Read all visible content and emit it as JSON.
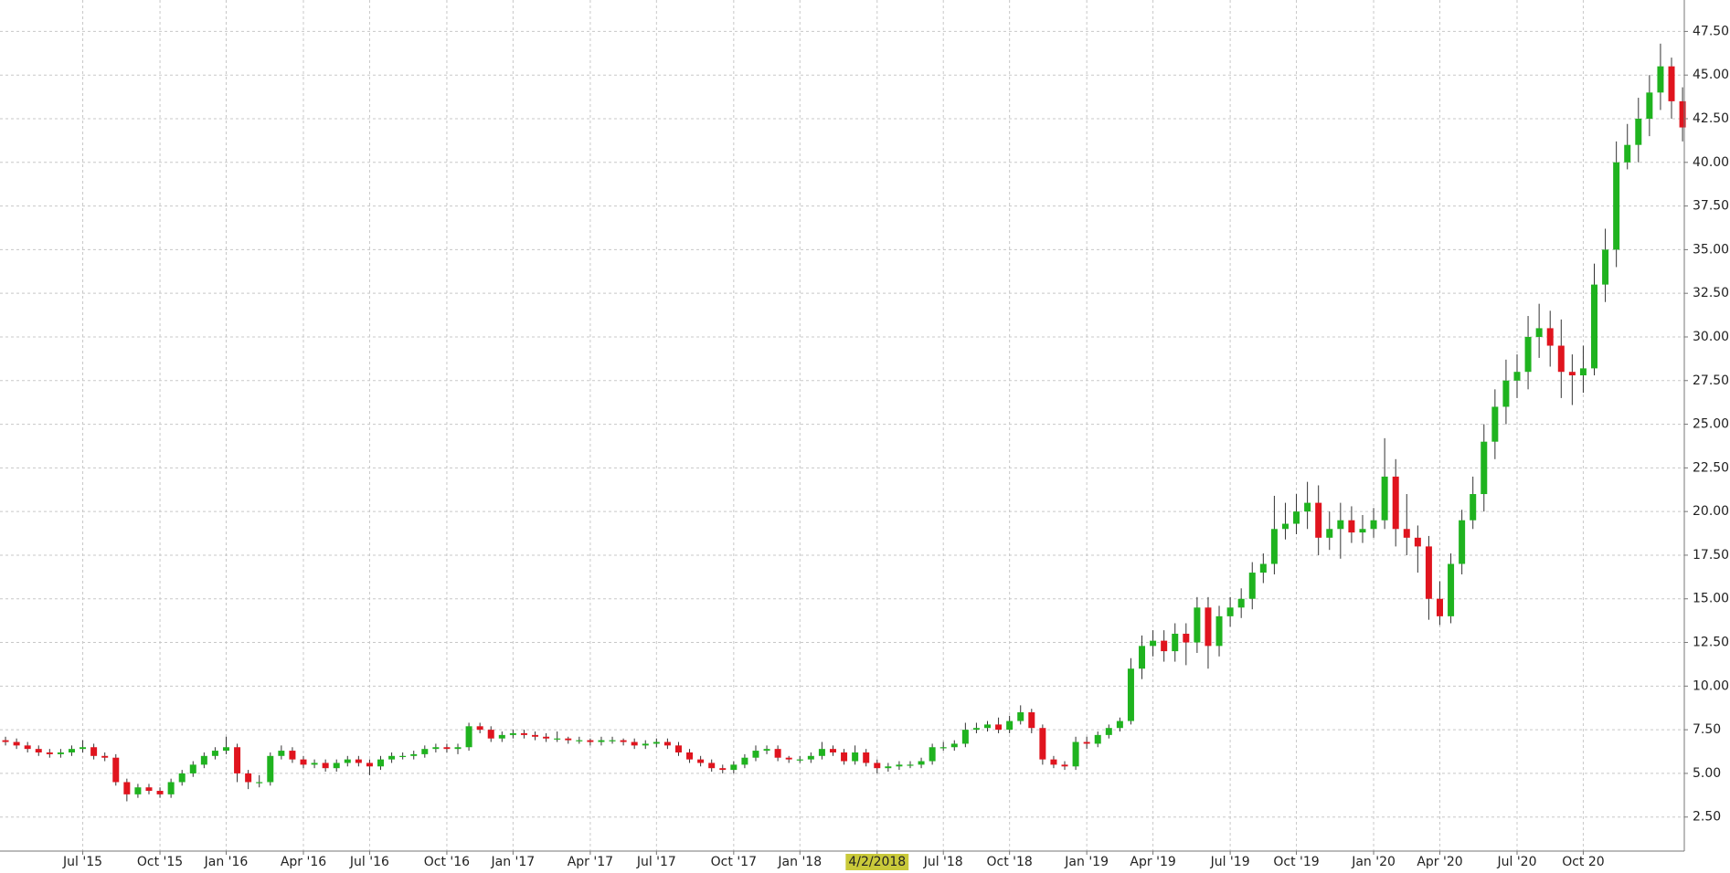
{
  "chart_data": {
    "type": "candlestick",
    "up_color": "#1fb31f",
    "down_color": "#e0141e",
    "highlight_color": "#c9c93a",
    "grid": true,
    "categories": [
      null,
      null,
      null,
      null,
      null,
      null,
      null,
      "Jul '15",
      null,
      null,
      null,
      null,
      null,
      null,
      "Oct '15",
      null,
      null,
      null,
      null,
      null,
      "Jan '16",
      null,
      null,
      null,
      null,
      null,
      null,
      "Apr '16",
      null,
      null,
      null,
      null,
      null,
      "Jul '16",
      null,
      null,
      null,
      null,
      null,
      null,
      "Oct '16",
      null,
      null,
      null,
      null,
      null,
      "Jan '17",
      null,
      null,
      null,
      null,
      null,
      null,
      "Apr '17",
      null,
      null,
      null,
      null,
      null,
      "Jul '17",
      null,
      null,
      null,
      null,
      null,
      null,
      "Oct '17",
      null,
      null,
      null,
      null,
      null,
      "Jan '18",
      null,
      null,
      null,
      null,
      null,
      null,
      "4/2/2018",
      null,
      null,
      null,
      null,
      null,
      "Jul '18",
      null,
      null,
      null,
      null,
      null,
      "Oct '18",
      null,
      null,
      null,
      null,
      null,
      null,
      "Jan '19",
      null,
      null,
      null,
      null,
      null,
      "Apr '19",
      null,
      null,
      null,
      null,
      null,
      null,
      "Jul '19",
      null,
      null,
      null,
      null,
      null,
      "Oct '19",
      null,
      null,
      null,
      null,
      null,
      null,
      "Jan '20",
      null,
      null,
      null,
      null,
      null,
      "Apr '20",
      null,
      null,
      null,
      null,
      null,
      null,
      "Jul '20",
      null,
      null,
      null,
      null,
      null,
      "Oct 20",
      null,
      null,
      null,
      null,
      null,
      null,
      null,
      null,
      null
    ],
    "open": [
      6.9,
      6.8,
      6.6,
      6.4,
      6.2,
      6.1,
      6.2,
      6.4,
      6.5,
      6.0,
      5.9,
      4.5,
      3.8,
      4.2,
      4.0,
      3.8,
      4.5,
      5.0,
      5.5,
      6.0,
      6.3,
      6.5,
      5.0,
      4.5,
      4.5,
      6.0,
      6.3,
      5.8,
      5.5,
      5.6,
      5.3,
      5.6,
      5.8,
      5.6,
      5.4,
      5.8,
      6.0,
      6.0,
      6.1,
      6.4,
      6.5,
      6.4,
      6.5,
      7.7,
      7.5,
      7.0,
      7.2,
      7.3,
      7.2,
      7.1,
      7.0,
      7.0,
      6.9,
      6.9,
      6.8,
      6.9,
      6.9,
      6.8,
      6.6,
      6.7,
      6.8,
      6.6,
      6.2,
      5.8,
      5.6,
      5.3,
      5.2,
      5.5,
      5.9,
      6.3,
      6.4,
      5.9,
      5.8,
      5.8,
      6.0,
      6.4,
      6.2,
      5.7,
      6.2,
      5.6,
      5.3,
      5.4,
      5.5,
      5.5,
      5.7,
      6.5,
      6.5,
      6.7,
      7.5,
      7.6,
      7.8,
      7.5,
      8.0,
      8.5,
      7.6,
      5.8,
      5.5,
      5.4,
      6.8,
      6.7,
      7.2,
      7.6,
      8.0,
      11.0,
      12.3,
      12.6,
      12.0,
      13.0,
      12.5,
      14.5,
      12.3,
      14.0,
      14.5,
      15.0,
      16.5,
      17.0,
      19.0,
      19.3,
      20.0,
      20.5,
      18.5,
      19.0,
      19.5,
      18.8,
      19.0,
      19.5,
      22.0,
      19.0,
      18.5,
      18.0,
      15.0,
      14.0,
      17.0,
      19.5,
      21.0,
      24.0,
      26.0,
      27.5,
      28.0,
      30.0,
      30.5,
      29.5,
      28.0,
      27.8,
      28.2,
      33.0,
      35.0,
      40.0,
      41.0,
      42.5,
      44.0,
      45.5,
      43.5
    ],
    "high": [
      7.1,
      7.0,
      6.8,
      6.6,
      6.4,
      6.4,
      6.6,
      6.9,
      6.7,
      6.2,
      6.1,
      4.7,
      4.4,
      4.4,
      4.2,
      4.7,
      5.2,
      5.7,
      6.2,
      6.5,
      7.1,
      6.7,
      5.2,
      4.9,
      6.2,
      6.6,
      6.5,
      6.0,
      5.8,
      5.8,
      5.8,
      6.0,
      6.0,
      5.8,
      6.0,
      6.2,
      6.2,
      6.3,
      6.6,
      6.7,
      6.7,
      6.7,
      7.9,
      7.9,
      7.7,
      7.4,
      7.5,
      7.5,
      7.4,
      7.3,
      7.4,
      7.1,
      7.1,
      7.0,
      7.1,
      7.1,
      7.0,
      7.0,
      6.9,
      7.0,
      7.0,
      6.8,
      6.4,
      6.0,
      5.8,
      5.5,
      5.7,
      6.1,
      6.6,
      6.6,
      6.6,
      6.0,
      6.0,
      6.2,
      6.8,
      6.6,
      6.4,
      6.6,
      6.4,
      5.8,
      5.6,
      5.7,
      5.7,
      5.9,
      6.7,
      6.8,
      6.9,
      7.9,
      7.9,
      8.0,
      8.2,
      8.3,
      8.9,
      8.7,
      7.8,
      6.0,
      5.7,
      7.1,
      7.1,
      7.4,
      7.8,
      8.2,
      11.6,
      12.9,
      13.2,
      13.2,
      13.6,
      13.6,
      15.1,
      15.1,
      14.6,
      15.1,
      15.6,
      17.1,
      17.6,
      20.9,
      20.5,
      21.0,
      21.7,
      21.5,
      20.0,
      20.5,
      20.3,
      19.8,
      20.2,
      24.2,
      23.0,
      21.0,
      19.2,
      18.6,
      16.0,
      17.6,
      20.1,
      22.0,
      25.0,
      27.0,
      28.7,
      29.0,
      31.2,
      31.9,
      31.5,
      31.0,
      29.0,
      29.5,
      34.2,
      36.2,
      41.2,
      42.2,
      43.7,
      45.0,
      46.8,
      46.0,
      44.3
    ],
    "low": [
      6.6,
      6.4,
      6.2,
      6.0,
      5.9,
      5.9,
      6.0,
      6.2,
      5.8,
      5.7,
      4.3,
      3.4,
      3.6,
      3.8,
      3.6,
      3.6,
      4.3,
      4.8,
      5.3,
      5.8,
      6.1,
      4.5,
      4.1,
      4.2,
      4.3,
      5.8,
      5.6,
      5.3,
      5.3,
      5.1,
      5.1,
      5.4,
      5.4,
      4.9,
      5.2,
      5.6,
      5.8,
      5.8,
      5.9,
      6.2,
      6.2,
      6.1,
      6.3,
      7.3,
      6.8,
      6.8,
      7.0,
      7.0,
      6.9,
      6.8,
      6.8,
      6.7,
      6.7,
      6.6,
      6.6,
      6.7,
      6.6,
      6.4,
      6.4,
      6.5,
      6.4,
      6.0,
      5.6,
      5.4,
      5.1,
      5.0,
      5.0,
      5.3,
      5.7,
      6.1,
      5.7,
      5.6,
      5.6,
      5.6,
      5.8,
      6.0,
      5.5,
      5.5,
      5.4,
      5.0,
      5.1,
      5.2,
      5.3,
      5.3,
      5.5,
      6.3,
      6.3,
      6.5,
      7.3,
      7.4,
      7.3,
      7.3,
      7.8,
      7.3,
      5.5,
      5.3,
      5.2,
      5.2,
      6.4,
      6.5,
      7.0,
      7.4,
      7.8,
      10.4,
      11.7,
      11.4,
      11.4,
      11.2,
      11.9,
      11.0,
      11.7,
      13.4,
      13.9,
      14.4,
      15.9,
      16.4,
      18.4,
      18.7,
      19.0,
      17.5,
      17.8,
      17.3,
      18.2,
      18.2,
      18.5,
      19.0,
      18.0,
      17.5,
      16.5,
      13.8,
      13.5,
      13.6,
      16.4,
      19.0,
      20.0,
      23.0,
      25.0,
      26.5,
      27.0,
      28.8,
      28.3,
      26.5,
      26.1,
      26.8,
      27.8,
      32.0,
      34.0,
      39.6,
      40.0,
      41.5,
      43.0,
      42.5,
      41.2
    ],
    "close": [
      6.8,
      6.6,
      6.4,
      6.2,
      6.1,
      6.2,
      6.4,
      6.5,
      6.0,
      5.9,
      4.5,
      3.8,
      4.2,
      4.0,
      3.8,
      4.5,
      5.0,
      5.5,
      6.0,
      6.3,
      6.5,
      5.0,
      4.5,
      4.5,
      6.0,
      6.3,
      5.8,
      5.5,
      5.6,
      5.3,
      5.6,
      5.8,
      5.6,
      5.4,
      5.8,
      6.0,
      6.0,
      6.1,
      6.4,
      6.5,
      6.4,
      6.5,
      7.7,
      7.5,
      7.0,
      7.2,
      7.3,
      7.2,
      7.1,
      7.0,
      7.0,
      6.9,
      6.9,
      6.8,
      6.9,
      6.9,
      6.8,
      6.6,
      6.7,
      6.8,
      6.6,
      6.2,
      5.8,
      5.6,
      5.3,
      5.2,
      5.5,
      5.9,
      6.3,
      6.4,
      5.9,
      5.8,
      5.8,
      6.0,
      6.4,
      6.2,
      5.7,
      6.2,
      5.6,
      5.3,
      5.4,
      5.5,
      5.5,
      5.7,
      6.5,
      6.5,
      6.7,
      7.5,
      7.6,
      7.8,
      7.5,
      8.0,
      8.5,
      7.6,
      5.8,
      5.5,
      5.4,
      6.8,
      6.7,
      7.2,
      7.6,
      8.0,
      11.0,
      12.3,
      12.6,
      12.0,
      13.0,
      12.5,
      14.5,
      12.3,
      14.0,
      14.5,
      15.0,
      16.5,
      17.0,
      19.0,
      19.3,
      20.0,
      20.5,
      18.5,
      19.0,
      19.5,
      18.8,
      19.0,
      19.5,
      22.0,
      19.0,
      18.5,
      18.0,
      15.0,
      14.0,
      17.0,
      19.5,
      21.0,
      24.0,
      26.0,
      27.5,
      28.0,
      30.0,
      30.5,
      29.5,
      28.0,
      27.8,
      28.2,
      33.0,
      35.0,
      40.0,
      41.0,
      42.5,
      44.0,
      45.5,
      43.5,
      42.0
    ],
    "ylim": [
      0.55,
      49.3
    ],
    "yticks": [
      {
        "value": 2.5,
        "label": "2.50"
      },
      {
        "value": 5,
        "label": "5.00"
      },
      {
        "value": 7.5,
        "label": "7.50"
      },
      {
        "value": 10,
        "label": "10.00"
      },
      {
        "value": 12.5,
        "label": "12.50"
      },
      {
        "value": 15,
        "label": "15.00"
      },
      {
        "value": 17.5,
        "label": "17.50"
      },
      {
        "value": 20,
        "label": "20.00"
      },
      {
        "value": 22.5,
        "label": "22.50"
      },
      {
        "value": 25,
        "label": "25.00"
      },
      {
        "value": 27.5,
        "label": "27.50"
      },
      {
        "value": 30,
        "label": "30.00"
      },
      {
        "value": 32.5,
        "label": "32.50"
      },
      {
        "value": 35,
        "label": "35.00"
      },
      {
        "value": 37.5,
        "label": "37.50"
      },
      {
        "value": 40,
        "label": "40.00"
      },
      {
        "value": 42.5,
        "label": "42.50"
      },
      {
        "value": 45,
        "label": "45.00"
      },
      {
        "value": 47.5,
        "label": "47.50"
      }
    ]
  }
}
